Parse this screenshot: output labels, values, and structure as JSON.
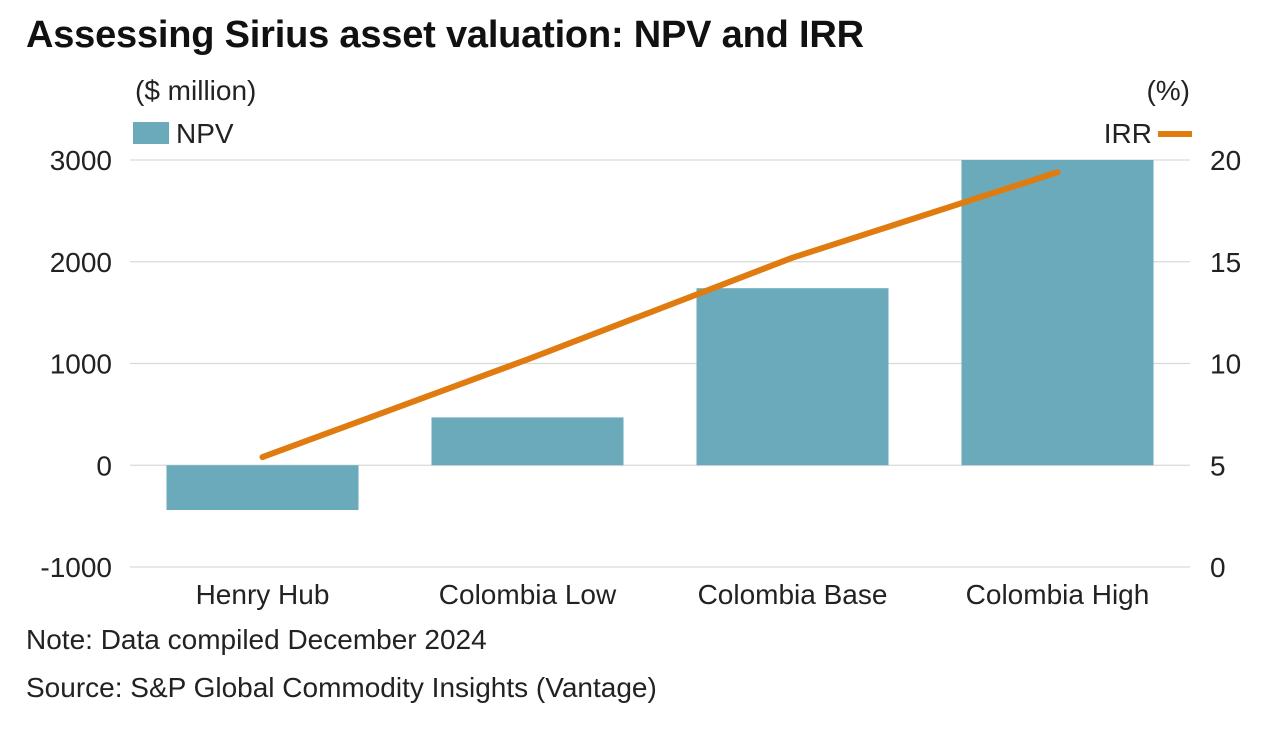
{
  "title": "Assessing Sirius asset valuation: NPV and IRR",
  "note": "Note: Data compiled December 2024",
  "source": "Source: S&P Global Commodity Insights (Vantage)",
  "colors": {
    "npv": "#6aaabb",
    "irr": "#e07b0f",
    "grid": "#d9d9d9"
  },
  "chart_data": {
    "type": "bar",
    "categories": [
      "Henry Hub",
      "Colombia Low",
      "Colombia Base",
      "Colombia High"
    ],
    "series": [
      {
        "name": "NPV",
        "type": "bar",
        "axis": "left",
        "values": [
          -440,
          470,
          1740,
          3000
        ]
      },
      {
        "name": "IRR",
        "type": "line",
        "axis": "right",
        "values": [
          5.4,
          10.2,
          15.2,
          19.4
        ]
      }
    ],
    "ylabel_left": "($ million)",
    "ylabel_right": "(%)",
    "ylim_left": [
      -1000,
      3000
    ],
    "ylim_right": [
      0,
      20
    ],
    "yticks_left": [
      "3000",
      "2000",
      "1000",
      "0",
      "-1000"
    ],
    "yticks_right": [
      "20",
      "15",
      "10",
      "5",
      "0"
    ],
    "grid": true,
    "legend": {
      "npv": "NPV",
      "irr": "IRR",
      "placement": "top"
    }
  }
}
